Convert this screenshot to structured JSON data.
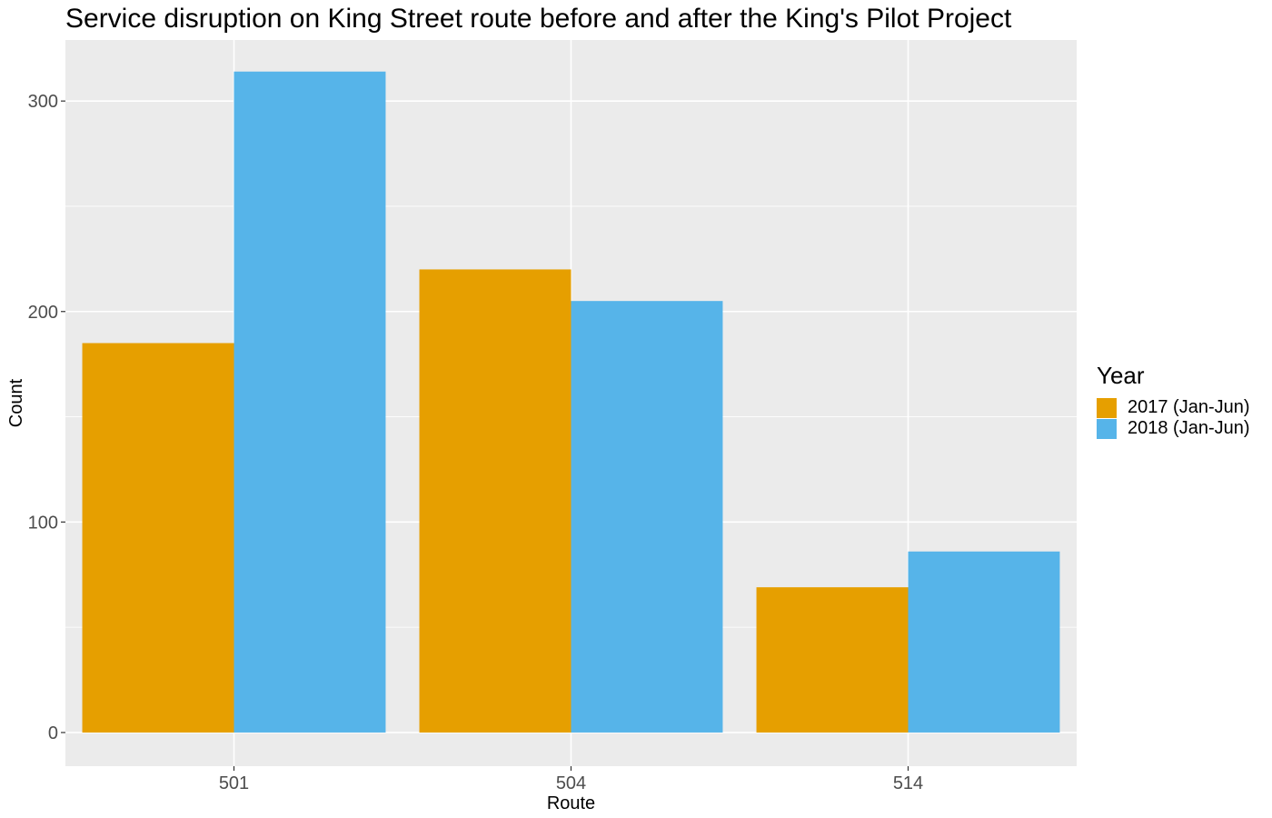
{
  "chart_data": {
    "type": "bar",
    "title": "Service disruption on King Street route before and after the King's Pilot Project",
    "xlabel": "Route",
    "ylabel": "Count",
    "categories": [
      "501",
      "504",
      "514"
    ],
    "series": [
      {
        "name": "2017 (Jan-Jun)",
        "color": "#E69F00",
        "values": [
          185,
          220,
          69
        ]
      },
      {
        "name": "2018 (Jan-Jun)",
        "color": "#56B4E9",
        "values": [
          314,
          205,
          86
        ]
      }
    ],
    "ylim": [
      -16,
      329
    ],
    "yticks": [
      0,
      100,
      200,
      300
    ],
    "grid": true,
    "legend": {
      "title": "Year",
      "position": "right"
    }
  }
}
